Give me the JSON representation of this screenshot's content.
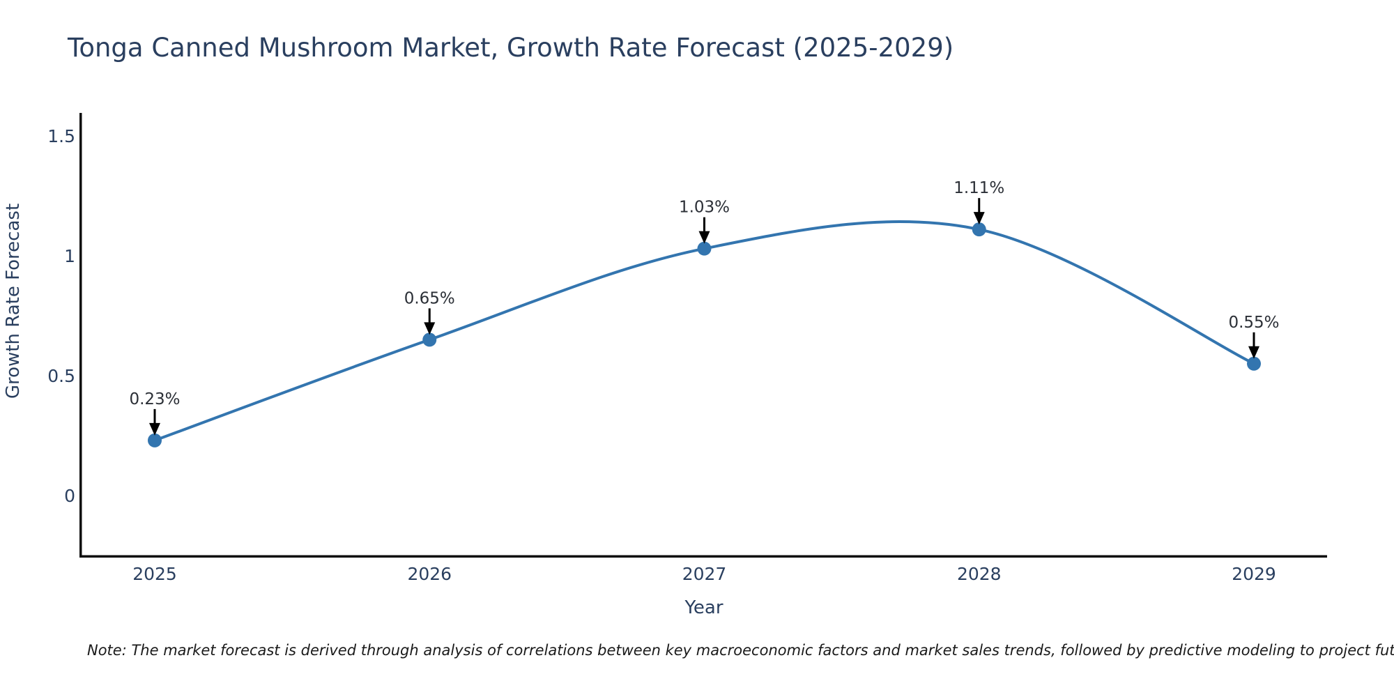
{
  "page": {
    "background": "#ffffff"
  },
  "footnote": "Note: The market forecast is derived through analysis of correlations between key macroeconomic factors and market sales trends, followed by predictive modeling to project future sales",
  "chart_data": {
    "type": "line",
    "title": "Tonga Canned Mushroom Market, Growth Rate Forecast (2025-2029)",
    "xlabel": "Year",
    "ylabel": "Growth Rate Forecast",
    "categories": [
      2025,
      2026,
      2027,
      2028,
      2029
    ],
    "values": [
      0.23,
      0.65,
      1.03,
      1.11,
      0.55
    ],
    "point_labels": [
      "0.23%",
      "0.65%",
      "1.03%",
      "1.11%",
      "0.55%"
    ],
    "series": [
      {
        "name": "Growth Rate Forecast",
        "values": [
          0.23,
          0.65,
          1.03,
          1.11,
          0.55
        ]
      }
    ],
    "unit": "%",
    "line_shape": "spline",
    "markers": true,
    "grid": false,
    "legend": false,
    "xticks": [
      2025,
      2026,
      2027,
      2028,
      2029
    ],
    "yticks": [
      0,
      0.5,
      1,
      1.5
    ],
    "ylim": [
      -0.25,
      1.6
    ],
    "colors": {
      "line": "#3375af",
      "marker": "#3375af",
      "axis_line": "#0d0d0d",
      "axis_text": "#2a3f5f",
      "annotation_text": "#2b2f36",
      "annotation_arrow": "#000000",
      "background": "#ffffff"
    }
  }
}
